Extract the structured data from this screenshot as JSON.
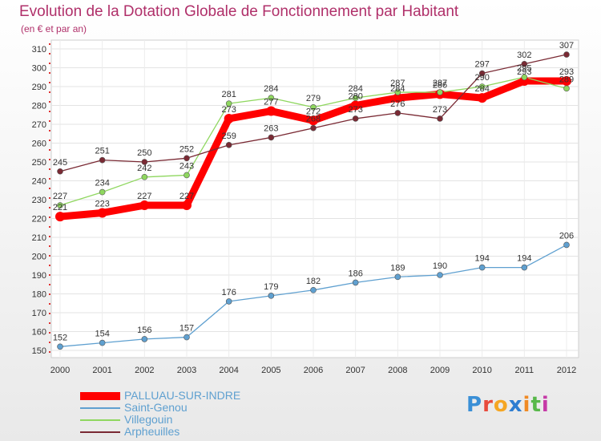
{
  "chart_data": {
    "type": "line",
    "title": "Evolution de la Dotation Globale de Fonctionnement par Habitant",
    "subtitle": "(en € et par an)",
    "categories": [
      "2000",
      "2001",
      "2002",
      "2003",
      "2004",
      "2005",
      "2006",
      "2007",
      "2008",
      "2009",
      "2010",
      "2011",
      "2012"
    ],
    "ylim": [
      150,
      310
    ],
    "yticks": [
      "150",
      "160",
      "170",
      "180",
      "190",
      "200",
      "210",
      "220",
      "230",
      "240",
      "250",
      "260",
      "270",
      "280",
      "290",
      "300",
      "310"
    ],
    "series": [
      {
        "name": "PALLUAU-SUR-INDRE",
        "color": "#ff0000",
        "values": [
          221,
          223,
          227,
          227,
          273,
          277,
          272,
          280,
          284,
          286,
          284,
          293,
          293
        ]
      },
      {
        "name": "Saint-Genou",
        "color": "#5fa0d0",
        "values": [
          152,
          154,
          156,
          157,
          176,
          179,
          182,
          186,
          189,
          190,
          194,
          194,
          206
        ]
      },
      {
        "name": "Villegouin",
        "color": "#8fd75f",
        "values": [
          227,
          234,
          242,
          243,
          281,
          284,
          279,
          284,
          287,
          287,
          290,
          295,
          289
        ]
      },
      {
        "name": "Arpheuilles",
        "color": "#7a2a34",
        "values": [
          245,
          251,
          250,
          252,
          259,
          263,
          268,
          273,
          276,
          273,
          297,
          302,
          307
        ]
      }
    ]
  },
  "logo": {
    "p": "P",
    "r": "r",
    "o": "o",
    "x": "x",
    "i1": "i",
    "t": "t",
    "i2": "i"
  }
}
